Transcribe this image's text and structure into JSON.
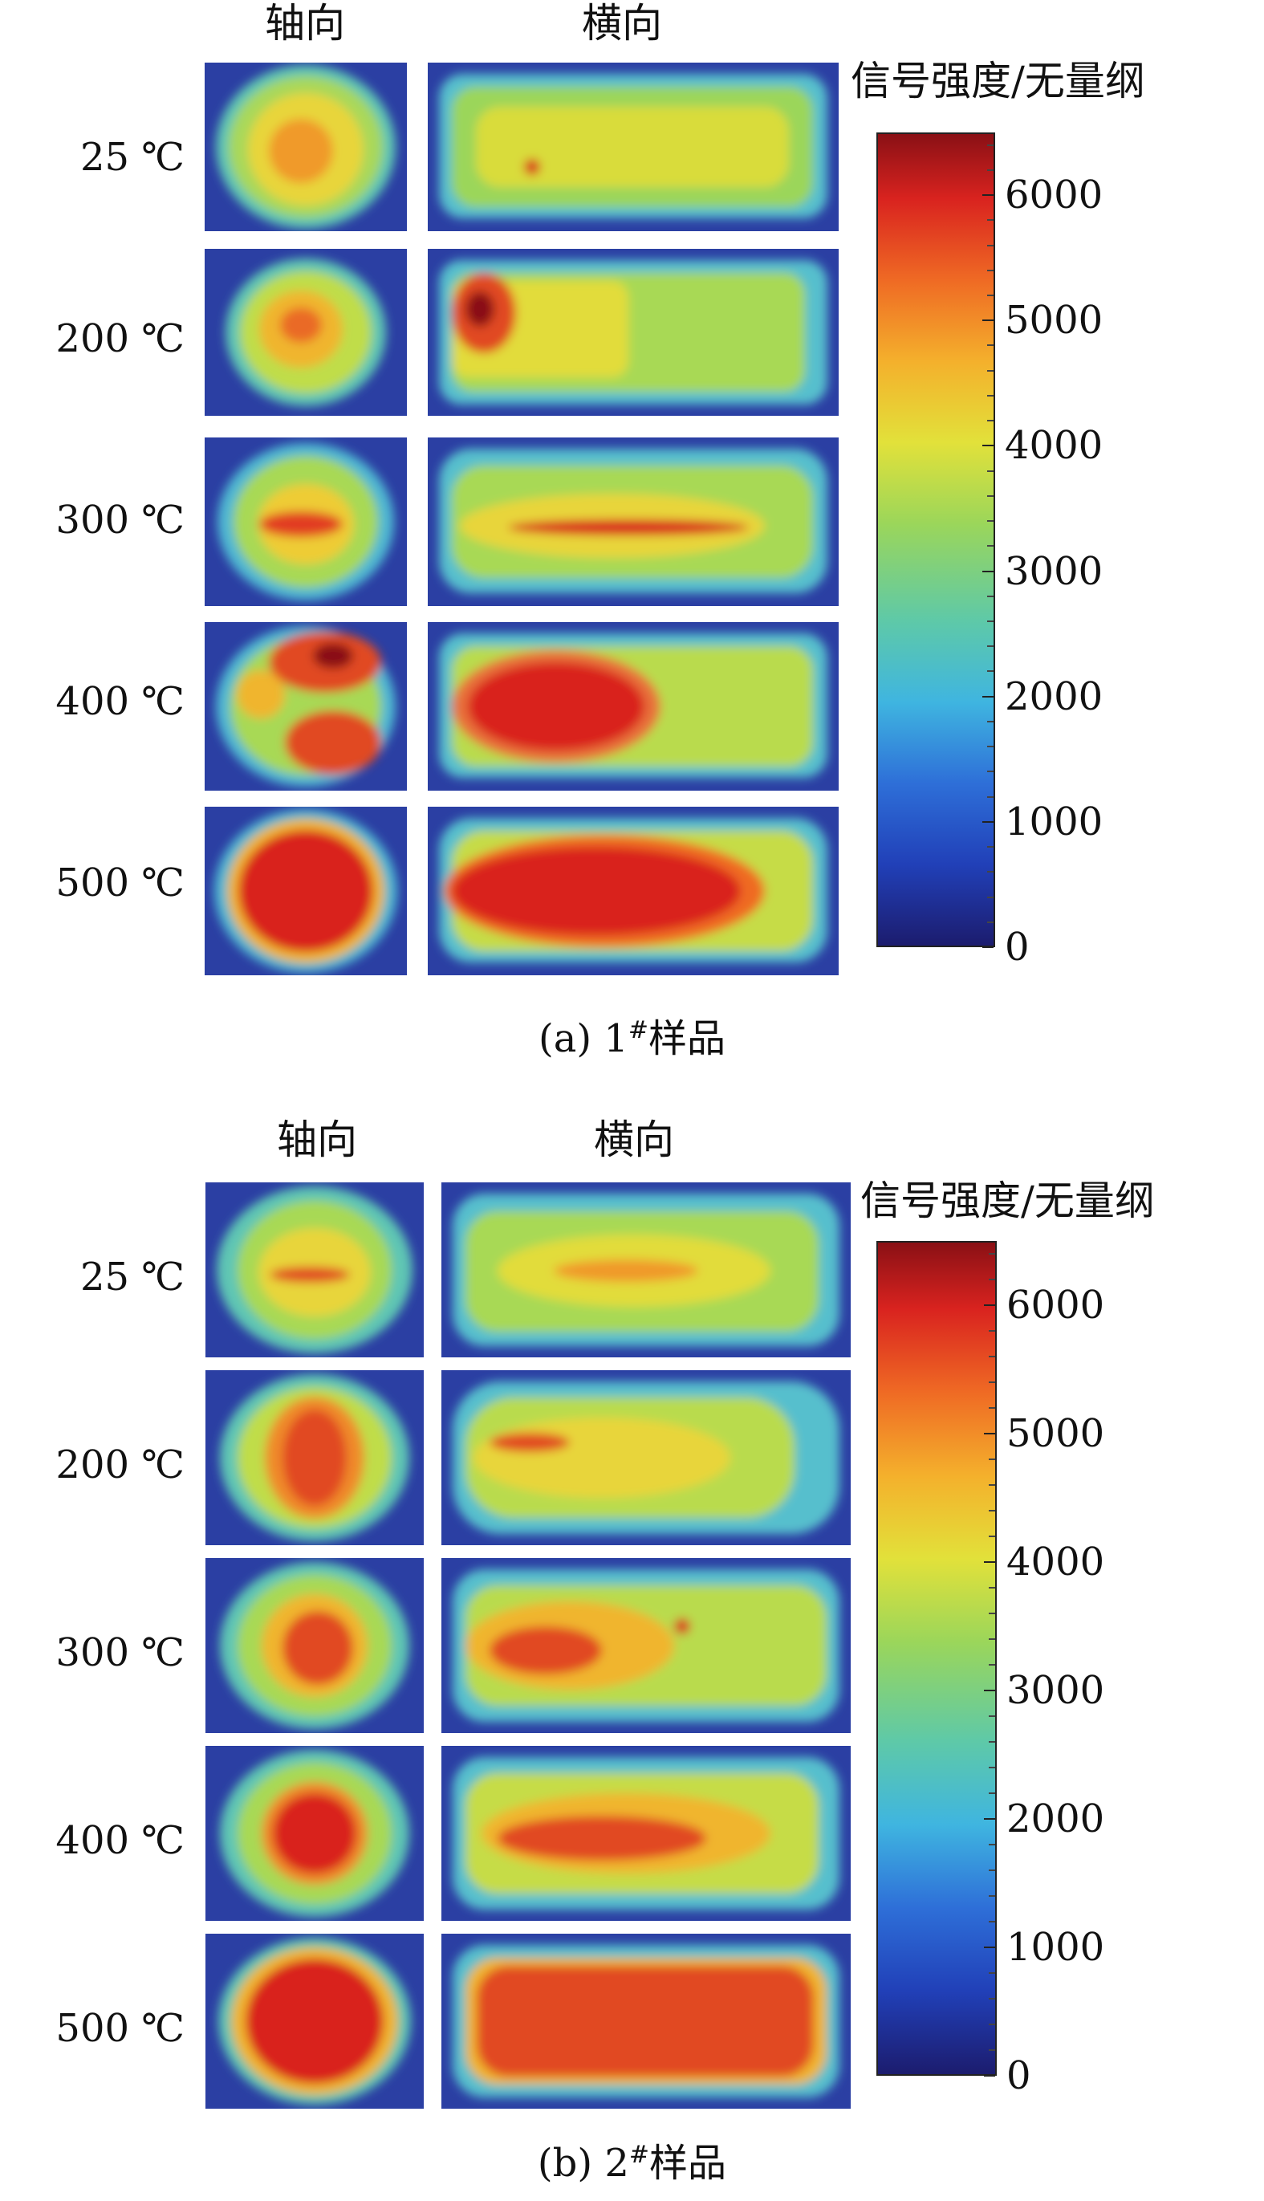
{
  "chart_data": [
    {
      "type": "heatmap",
      "caption": {
        "prefix": "(a) 1",
        "sup": "#",
        "suffix": "样品"
      },
      "columns": [
        "轴向",
        "横向"
      ],
      "rows": [
        "25 ℃",
        "200 ℃",
        "300 ℃",
        "400 ℃",
        "500 ℃"
      ],
      "colorbar": {
        "title": "信号强度/无量纲",
        "ticks": [
          0,
          1000,
          2000,
          3000,
          4000,
          5000,
          6000
        ],
        "range": [
          0,
          6500
        ]
      }
    },
    {
      "type": "heatmap",
      "caption": {
        "prefix": "(b) 2",
        "sup": "#",
        "suffix": "样品"
      },
      "columns": [
        "轴向",
        "横向"
      ],
      "rows": [
        "25 ℃",
        "200 ℃",
        "300 ℃",
        "400 ℃",
        "500 ℃"
      ],
      "colorbar": {
        "title": "信号强度/无量纲",
        "ticks": [
          0,
          1000,
          2000,
          3000,
          4000,
          5000,
          6000
        ],
        "range": [
          0,
          6500
        ]
      }
    }
  ]
}
